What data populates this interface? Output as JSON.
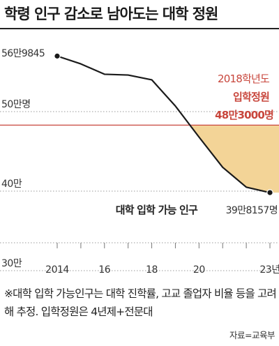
{
  "title": "학령 인구 감소로 남아도는 대학 정원",
  "chart_data": {
    "type": "line",
    "x": [
      2014,
      2015,
      2016,
      2017,
      2018,
      2019,
      2020,
      2021,
      2022,
      2023
    ],
    "xtick_labels": [
      "2014",
      "16",
      "18",
      "20",
      "23년"
    ],
    "xtick_values": [
      2014,
      2016,
      2018,
      2020,
      2023
    ],
    "series": [
      {
        "name": "대학 입학 가능 인구",
        "values": [
          569845,
          560000,
          547000,
          546000,
          540000,
          507000,
          468000,
          430000,
          405000,
          398157
        ],
        "color": "#1a1a1a"
      }
    ],
    "ylim": [
      300000,
      600000
    ],
    "ytick_labels": [
      {
        "value": 300000,
        "label": "30만"
      },
      {
        "value": 400000,
        "label": "40만"
      },
      {
        "value": 500000,
        "label": "50만명"
      }
    ],
    "grid": true,
    "reference_line": {
      "value": 483000,
      "label_line1": "2018학년도",
      "label_line2": "입학정원",
      "label_line3": "48만3000명",
      "color": "#c8463c"
    },
    "shaded_area": {
      "from": "reference_line",
      "to": "series",
      "start_x": 2019.7,
      "color": "#f3d497"
    },
    "annotations": [
      {
        "text": "56만9845",
        "x": 2014
      },
      {
        "text": "39만8157명",
        "x": 2023
      }
    ],
    "series_label": "대학 입학 가능 인구"
  },
  "note": "※대학 입학 가능인구는 대학 진학률, 고교 졸업자 비율 등을 고려해 추정. 입학정원은 4년제+전문대",
  "source": "자료=교육부",
  "colors": {
    "line": "#1a1a1a",
    "reference": "#c8463c",
    "shade": "#f3d497",
    "grid": "#999999"
  }
}
